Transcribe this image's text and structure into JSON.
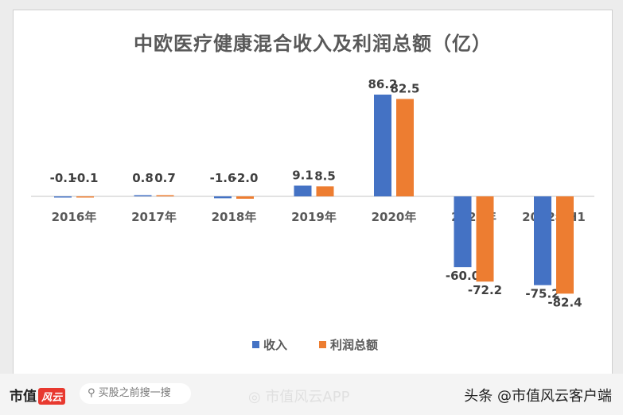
{
  "chart_data": {
    "type": "bar",
    "title": "中欧医疗健康混合收入及利润总额（亿）",
    "categories": [
      "2016年",
      "2017年",
      "2018年",
      "2019年",
      "2020年",
      "2021年",
      "2022年H1"
    ],
    "series": [
      {
        "name": "收入",
        "color": "#4472c4",
        "values": [
          -0.1,
          0.8,
          -1.6,
          9.1,
          86.2,
          -60.0,
          -75.2
        ]
      },
      {
        "name": "利润总额",
        "color": "#ed7d31",
        "values": [
          -0.1,
          0.7,
          -2.0,
          8.5,
          82.5,
          -72.2,
          -82.4
        ]
      }
    ],
    "data_labels": true,
    "legend": "bottom",
    "grid": false,
    "ylim": [
      -90,
      90
    ]
  },
  "watermark": "市值风云",
  "footer": {
    "brand": "市值",
    "brand_logo": "风云",
    "search_placeholder": "买股之前搜一搜",
    "weibo": "市值风云APP",
    "toutiao": "头条 @市值风云客户端"
  }
}
